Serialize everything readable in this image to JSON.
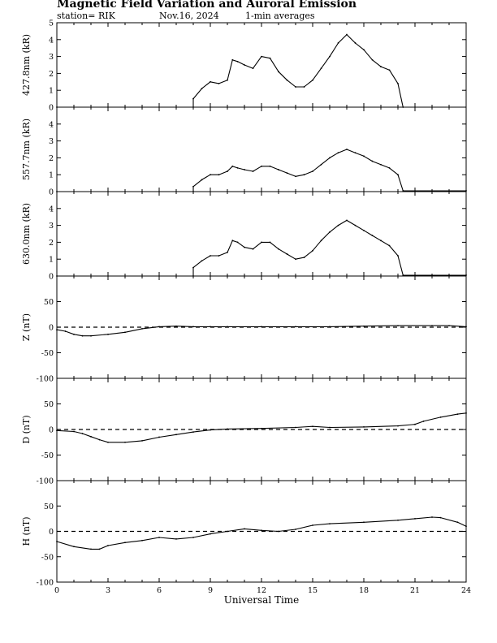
{
  "header": {
    "title": "Magnetic Field Variation and Auroral Emission",
    "station": "station= RIK",
    "date": "Nov.16, 2024",
    "averaging": "1-min averages"
  },
  "chart_data": [
    {
      "type": "line",
      "ylabel": "427.8nm (kR)",
      "ylim": [
        0,
        5
      ],
      "yticks": [
        0,
        1,
        2,
        3,
        4,
        5
      ],
      "xlim": [
        0,
        24
      ],
      "series": [
        {
          "x": [
            0,
            8.0,
            8.0,
            8.5,
            9.0,
            9.5,
            10.0,
            10.3,
            10.6,
            11.0,
            11.5,
            12.0,
            12.5,
            13.0,
            13.5,
            14.0,
            14.5,
            15.0,
            15.5,
            16.0,
            16.5,
            17.0,
            17.5,
            18.0,
            18.5,
            19.0,
            19.5,
            20.0,
            20.3
          ],
          "y": [
            0,
            0,
            0.5,
            1.1,
            1.5,
            1.4,
            1.6,
            2.8,
            2.7,
            2.5,
            2.3,
            3.0,
            2.9,
            2.1,
            1.6,
            1.2,
            1.2,
            1.6,
            2.3,
            3.0,
            3.8,
            4.3,
            3.8,
            3.4,
            2.8,
            2.4,
            2.2,
            1.4,
            0
          ]
        }
      ]
    },
    {
      "type": "line",
      "ylabel": "557.7nm (kR)",
      "ylim": [
        0,
        5
      ],
      "yticks": [
        0,
        1,
        2,
        3,
        4
      ],
      "xlim": [
        0,
        24
      ],
      "series": [
        {
          "x": [
            0,
            8.0,
            8.0,
            8.5,
            9.0,
            9.5,
            10.0,
            10.3,
            10.6,
            11.0,
            11.5,
            12.0,
            12.5,
            13.0,
            13.5,
            14.0,
            14.5,
            15.0,
            15.5,
            16.0,
            16.5,
            17.0,
            17.5,
            18.0,
            18.5,
            19.0,
            19.5,
            20.0,
            20.3,
            24
          ],
          "y": [
            0,
            0,
            0.3,
            0.7,
            1.0,
            1.0,
            1.2,
            1.5,
            1.4,
            1.3,
            1.2,
            1.5,
            1.5,
            1.3,
            1.1,
            0.9,
            1.0,
            1.2,
            1.6,
            2.0,
            2.3,
            2.5,
            2.3,
            2.1,
            1.8,
            1.6,
            1.4,
            1.0,
            0.05,
            0.05
          ]
        }
      ]
    },
    {
      "type": "line",
      "ylabel": "630.0nm (kR)",
      "ylim": [
        0,
        5
      ],
      "yticks": [
        0,
        1,
        2,
        3,
        4
      ],
      "xlim": [
        0,
        24
      ],
      "series": [
        {
          "x": [
            0,
            8.0,
            8.0,
            8.5,
            9.0,
            9.5,
            10.0,
            10.3,
            10.6,
            11.0,
            11.5,
            12.0,
            12.5,
            13.0,
            13.5,
            14.0,
            14.5,
            15.0,
            15.5,
            16.0,
            16.5,
            17.0,
            17.5,
            18.0,
            18.5,
            19.0,
            19.5,
            20.0,
            20.3,
            24
          ],
          "y": [
            0,
            0,
            0.5,
            0.9,
            1.2,
            1.2,
            1.4,
            2.1,
            2.0,
            1.7,
            1.6,
            2.0,
            2.0,
            1.6,
            1.3,
            1.0,
            1.1,
            1.5,
            2.1,
            2.6,
            3.0,
            3.3,
            3.0,
            2.7,
            2.4,
            2.1,
            1.8,
            1.2,
            0.05,
            0.05
          ]
        }
      ]
    },
    {
      "type": "line",
      "ylabel": "Z (nT)",
      "ylim": [
        -100,
        100
      ],
      "yticks": [
        -100,
        -50,
        0,
        50
      ],
      "xlim": [
        0,
        24
      ],
      "zero_line": true,
      "series": [
        {
          "x": [
            0,
            0.5,
            1.0,
            1.5,
            2.0,
            3.0,
            4.0,
            5.0,
            6.0,
            7.0,
            8.0,
            9.0,
            10.0,
            12.0,
            14.0,
            16.0,
            18.0,
            20.0,
            22.0,
            23.0,
            24.0
          ],
          "y": [
            -5,
            -8,
            -14,
            -17,
            -17,
            -14,
            -10,
            -3,
            1,
            2,
            1,
            1,
            1,
            1,
            1,
            1,
            2,
            3,
            3,
            3,
            1
          ]
        }
      ]
    },
    {
      "type": "line",
      "ylabel": "D (nT)",
      "ylim": [
        -100,
        100
      ],
      "yticks": [
        -100,
        -50,
        0,
        50
      ],
      "xlim": [
        0,
        24
      ],
      "zero_line": true,
      "series": [
        {
          "x": [
            0,
            1.0,
            1.5,
            2.0,
            2.5,
            3.0,
            4.0,
            5.0,
            6.0,
            7.0,
            8.0,
            9.0,
            10.0,
            12.0,
            14.0,
            15.0,
            16.0,
            18.0,
            20.0,
            21.0,
            21.5,
            22.5,
            23.5,
            24.0
          ],
          "y": [
            -2,
            -4,
            -8,
            -14,
            -20,
            -25,
            -25,
            -22,
            -15,
            -10,
            -5,
            -1,
            1,
            2,
            4,
            6,
            4,
            5,
            7,
            10,
            16,
            24,
            30,
            32
          ]
        }
      ]
    },
    {
      "type": "line",
      "ylabel": "H (nT)",
      "ylim": [
        -100,
        100
      ],
      "yticks": [
        -100,
        -50,
        0,
        50
      ],
      "xlim": [
        0,
        24
      ],
      "xticks": [
        0,
        3,
        6,
        9,
        12,
        15,
        18,
        21,
        24
      ],
      "xlabel": "Universal Time",
      "zero_line": true,
      "series": [
        {
          "x": [
            0,
            1.0,
            2.0,
            2.5,
            3.0,
            4.0,
            5.0,
            6.0,
            7.0,
            8.0,
            9.0,
            10.0,
            11.0,
            12.0,
            13.0,
            14.0,
            15.0,
            16.0,
            18.0,
            20.0,
            21.0,
            22.0,
            22.5,
            23.5,
            24.0
          ],
          "y": [
            -20,
            -30,
            -35,
            -35,
            -28,
            -22,
            -18,
            -12,
            -15,
            -12,
            -5,
            0,
            5,
            2,
            0,
            4,
            12,
            15,
            18,
            22,
            25,
            28,
            27,
            18,
            10
          ]
        }
      ]
    }
  ]
}
